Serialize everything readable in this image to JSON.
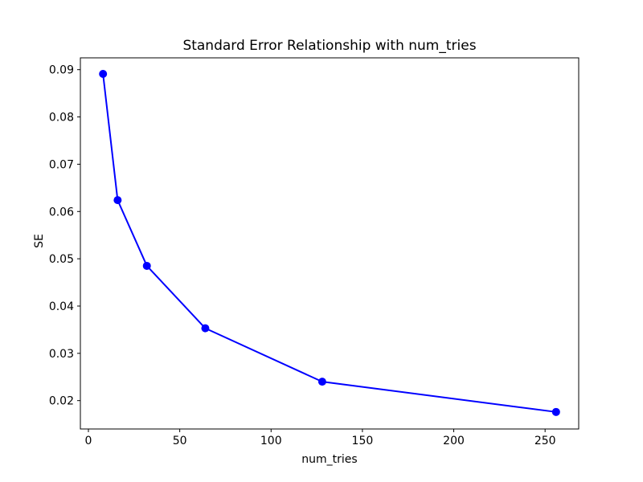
{
  "chart_data": {
    "type": "line",
    "title": "Standard Error Relationship with num_tries",
    "xlabel": "num_tries",
    "ylabel": "SE",
    "series": [
      {
        "name": "SE",
        "x": [
          8,
          16,
          32,
          64,
          128,
          256
        ],
        "y": [
          0.0891,
          0.0624,
          0.0485,
          0.0353,
          0.024,
          0.0176
        ],
        "color": "#0000ff",
        "marker": "circle",
        "line_style": "solid"
      }
    ],
    "xlim": [
      -4.4,
      268.4
    ],
    "ylim": [
      0.014,
      0.0925
    ],
    "xticks": [
      0,
      50,
      100,
      150,
      200,
      250
    ],
    "xtick_labels": [
      "0",
      "50",
      "100",
      "150",
      "200",
      "250"
    ],
    "yticks": [
      0.02,
      0.03,
      0.04,
      0.05,
      0.06,
      0.07,
      0.08,
      0.09
    ],
    "ytick_labels": [
      "0.02",
      "0.03",
      "0.04",
      "0.05",
      "0.06",
      "0.07",
      "0.08",
      "0.09"
    ],
    "grid": false,
    "legend": null,
    "background_color": "#ffffff",
    "spine_color": "#000000"
  }
}
